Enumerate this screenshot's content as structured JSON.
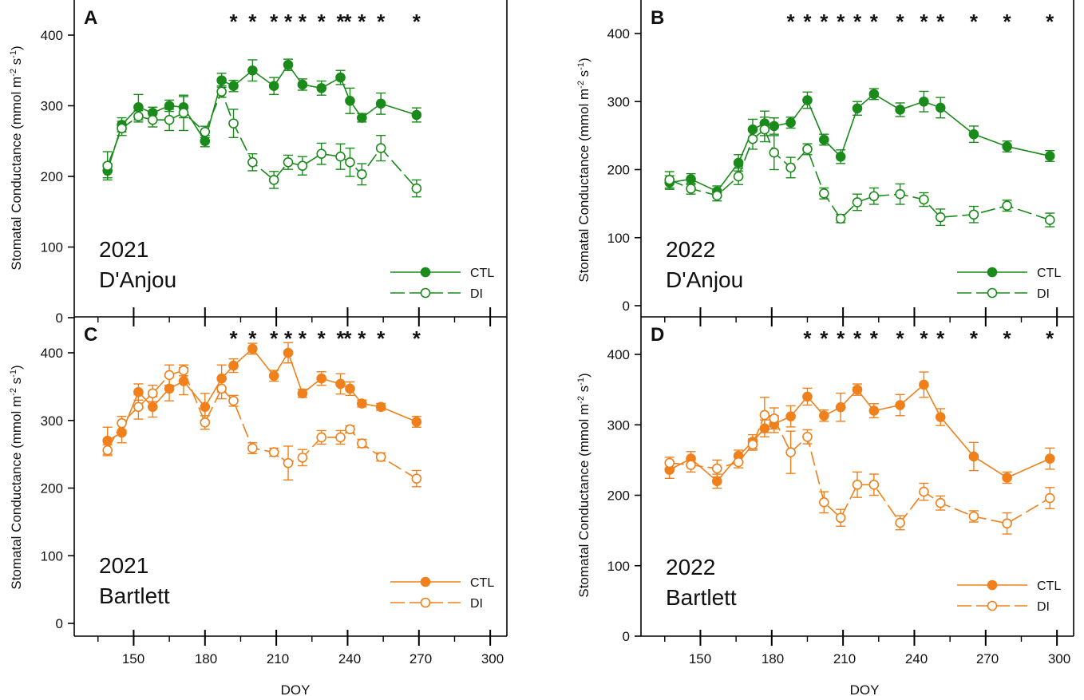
{
  "figure": {
    "x_axis_title": "DOY",
    "y_axis_title": "Stomatal Conductance (mmol m",
    "y_axis_sup1": "-2",
    "y_axis_mid": " s",
    "y_axis_sup2": "-1",
    "y_axis_end": ")",
    "x_ticks": [
      "150",
      "180",
      "210",
      "240",
      "270",
      "300"
    ]
  },
  "colors": {
    "green": "#1a8a1a",
    "orange": "#f0801c"
  },
  "chart_data": [
    {
      "type": "line",
      "panel": "A",
      "annotation": [
        "2021",
        "D'Anjou"
      ],
      "color": "green",
      "xlim": [
        125,
        307
      ],
      "ylim": [
        0,
        440
      ],
      "y_ticks": [
        0,
        100,
        200,
        300,
        400
      ],
      "x_ticks": [
        150,
        180,
        210,
        240,
        270,
        300
      ],
      "x_label": "DOY",
      "y_label": "Stomatal Conductance (mmol m-2 s-1)",
      "legend": [
        "CTL",
        "DI"
      ],
      "legend_position": "bottom-right",
      "significance": [
        {
          "x": 192,
          "label": "*"
        },
        {
          "x": 200,
          "label": "*"
        },
        {
          "x": 209,
          "label": "*"
        },
        {
          "x": 215,
          "label": "*"
        },
        {
          "x": 221,
          "label": "*"
        },
        {
          "x": 229,
          "label": "*"
        },
        {
          "x": 237,
          "label": "*"
        },
        {
          "x": 240,
          "label": "*"
        },
        {
          "x": 246,
          "label": "*"
        },
        {
          "x": 254,
          "label": "*"
        },
        {
          "x": 269,
          "label": "*"
        }
      ],
      "series": [
        {
          "name": "CTL",
          "marker": "filled",
          "x": [
            139,
            145,
            152,
            158,
            165,
            171,
            180,
            187,
            192,
            200,
            209,
            215,
            221,
            229,
            237,
            241,
            246,
            254,
            269
          ],
          "y": [
            208,
            273,
            298,
            290,
            300,
            298,
            250,
            336,
            328,
            350,
            328,
            358,
            330,
            325,
            340,
            307,
            283,
            303,
            287
          ],
          "err": [
            10,
            10,
            18,
            8,
            8,
            15,
            8,
            10,
            8,
            15,
            12,
            8,
            8,
            10,
            10,
            18,
            6,
            15,
            10
          ]
        },
        {
          "name": "DI",
          "marker": "open",
          "x": [
            139,
            145,
            152,
            158,
            165,
            171,
            180,
            187,
            192,
            200,
            209,
            215,
            221,
            229,
            237,
            241,
            246,
            254,
            269
          ],
          "y": [
            215,
            268,
            285,
            280,
            280,
            290,
            263,
            320,
            275,
            220,
            195,
            220,
            215,
            232,
            228,
            220,
            203,
            240,
            183
          ],
          "err": [
            20,
            10,
            8,
            10,
            15,
            25,
            8,
            8,
            20,
            12,
            12,
            10,
            13,
            15,
            18,
            20,
            15,
            18,
            12
          ]
        }
      ]
    },
    {
      "type": "line",
      "panel": "B",
      "annotation": [
        "2022",
        "D'Anjou"
      ],
      "color": "green",
      "xlim": [
        125,
        307
      ],
      "ylim": [
        0,
        440
      ],
      "y_ticks": [
        0,
        100,
        200,
        300,
        400
      ],
      "x_ticks": [
        150,
        180,
        210,
        240,
        270,
        300
      ],
      "x_label": "DOY",
      "y_label": "Stomatal Conductance (mmol m-2 s-1)",
      "legend": [
        "CTL",
        "DI"
      ],
      "legend_position": "bottom-right",
      "significance": [
        {
          "x": 188,
          "label": "*"
        },
        {
          "x": 195,
          "label": "*"
        },
        {
          "x": 202,
          "label": "*"
        },
        {
          "x": 209,
          "label": "*"
        },
        {
          "x": 216,
          "label": "*"
        },
        {
          "x": 223,
          "label": "*"
        },
        {
          "x": 234,
          "label": "*"
        },
        {
          "x": 244,
          "label": "*"
        },
        {
          "x": 251,
          "label": "*"
        },
        {
          "x": 265,
          "label": "*"
        },
        {
          "x": 279,
          "label": "*"
        },
        {
          "x": 297,
          "label": "*"
        }
      ],
      "series": [
        {
          "name": "CTL",
          "marker": "filled",
          "x": [
            137,
            146,
            157,
            166,
            172,
            177,
            181,
            188,
            195,
            202,
            209,
            216,
            223,
            234,
            244,
            251,
            265,
            279,
            297
          ],
          "y": [
            181,
            186,
            168,
            210,
            259,
            268,
            264,
            269,
            302,
            244,
            219,
            290,
            311,
            288,
            300,
            291,
            252,
            234,
            220
          ],
          "err": [
            10,
            8,
            8,
            12,
            15,
            18,
            12,
            8,
            12,
            8,
            10,
            10,
            8,
            10,
            15,
            15,
            12,
            8,
            8
          ]
        },
        {
          "name": "DI",
          "marker": "open",
          "x": [
            137,
            146,
            157,
            166,
            172,
            177,
            181,
            188,
            195,
            202,
            209,
            216,
            223,
            234,
            244,
            251,
            265,
            279,
            297
          ],
          "y": [
            185,
            172,
            162,
            190,
            245,
            259,
            225,
            203,
            230,
            165,
            128,
            152,
            161,
            164,
            156,
            130,
            134,
            147,
            126
          ],
          "err": [
            12,
            8,
            8,
            12,
            15,
            18,
            25,
            15,
            8,
            8,
            6,
            12,
            12,
            15,
            10,
            12,
            12,
            8,
            10
          ]
        }
      ]
    },
    {
      "type": "line",
      "panel": "C",
      "annotation": [
        "2021",
        "Bartlett"
      ],
      "color": "orange",
      "xlim": [
        125,
        307
      ],
      "ylim": [
        0,
        440
      ],
      "y_ticks": [
        0,
        100,
        200,
        300,
        400
      ],
      "x_ticks": [
        150,
        180,
        210,
        240,
        270,
        300
      ],
      "x_label": "DOY",
      "y_label": "Stomatal Conductance (mmol m-2 s-1)",
      "legend": [
        "CTL",
        "DI"
      ],
      "legend_position": "bottom-right",
      "significance": [
        {
          "x": 192,
          "label": "*"
        },
        {
          "x": 200,
          "label": "*"
        },
        {
          "x": 209,
          "label": "*"
        },
        {
          "x": 215,
          "label": "*"
        },
        {
          "x": 221,
          "label": "*"
        },
        {
          "x": 229,
          "label": "*"
        },
        {
          "x": 237,
          "label": "*"
        },
        {
          "x": 240,
          "label": "*"
        },
        {
          "x": 246,
          "label": "*"
        },
        {
          "x": 254,
          "label": "*"
        },
        {
          "x": 269,
          "label": "*"
        }
      ],
      "series": [
        {
          "name": "CTL",
          "marker": "filled",
          "x": [
            139,
            145,
            152,
            158,
            165,
            171,
            180,
            187,
            192,
            200,
            209,
            215,
            221,
            229,
            237,
            241,
            246,
            254,
            269
          ],
          "y": [
            270,
            282,
            342,
            320,
            347,
            358,
            320,
            362,
            381,
            406,
            366,
            400,
            340,
            362,
            354,
            347,
            325,
            320,
            298
          ],
          "err": [
            20,
            15,
            12,
            15,
            18,
            20,
            20,
            20,
            10,
            8,
            8,
            15,
            6,
            10,
            15,
            10,
            5,
            5,
            8
          ]
        },
        {
          "name": "DI",
          "marker": "open",
          "x": [
            139,
            145,
            152,
            158,
            165,
            171,
            180,
            187,
            192,
            200,
            209,
            215,
            221,
            229,
            237,
            241,
            246,
            254,
            269
          ],
          "y": [
            256,
            296,
            320,
            340,
            367,
            374,
            297,
            347,
            329,
            259,
            253,
            237,
            245,
            275,
            275,
            287,
            266,
            246,
            214
          ],
          "err": [
            8,
            10,
            18,
            12,
            15,
            8,
            10,
            15,
            8,
            8,
            6,
            25,
            12,
            10,
            10,
            5,
            6,
            6,
            12
          ]
        }
      ]
    },
    {
      "type": "line",
      "panel": "D",
      "annotation": [
        "2022",
        "Bartlett"
      ],
      "color": "orange",
      "xlim": [
        125,
        307
      ],
      "ylim": [
        0,
        440
      ],
      "y_ticks": [
        0,
        100,
        200,
        300,
        400
      ],
      "x_ticks": [
        150,
        180,
        210,
        240,
        270,
        300
      ],
      "x_label": "DOY",
      "y_label": "Stomatal Conductance (mmol m-2 s-1)",
      "legend": [
        "CTL",
        "DI"
      ],
      "legend_position": "bottom-right",
      "significance": [
        {
          "x": 195,
          "label": "*"
        },
        {
          "x": 202,
          "label": "*"
        },
        {
          "x": 209,
          "label": "*"
        },
        {
          "x": 216,
          "label": "*"
        },
        {
          "x": 223,
          "label": "*"
        },
        {
          "x": 234,
          "label": "*"
        },
        {
          "x": 244,
          "label": "*"
        },
        {
          "x": 251,
          "label": "*"
        },
        {
          "x": 265,
          "label": "*"
        },
        {
          "x": 279,
          "label": "*"
        },
        {
          "x": 297,
          "label": "*"
        }
      ],
      "series": [
        {
          "name": "CTL",
          "marker": "filled",
          "x": [
            137,
            146,
            157,
            166,
            172,
            177,
            181,
            188,
            195,
            202,
            209,
            216,
            223,
            234,
            244,
            251,
            265,
            279,
            297
          ],
          "y": [
            236,
            252,
            220,
            256,
            276,
            295,
            301,
            312,
            340,
            313,
            325,
            350,
            320,
            328,
            357,
            311,
            255,
            225,
            252
          ],
          "err": [
            12,
            10,
            10,
            8,
            10,
            12,
            12,
            15,
            12,
            8,
            20,
            8,
            10,
            15,
            18,
            12,
            20,
            8,
            15
          ]
        },
        {
          "name": "DI",
          "marker": "open",
          "x": [
            137,
            146,
            157,
            166,
            172,
            177,
            181,
            188,
            195,
            202,
            209,
            216,
            223,
            234,
            244,
            251,
            265,
            279,
            297
          ],
          "y": [
            246,
            243,
            238,
            247,
            272,
            314,
            309,
            261,
            283,
            190,
            168,
            215,
            215,
            161,
            205,
            189,
            170,
            160,
            196
          ],
          "err": [
            8,
            10,
            12,
            8,
            8,
            25,
            15,
            30,
            10,
            15,
            12,
            18,
            15,
            10,
            12,
            10,
            8,
            15,
            15
          ]
        }
      ]
    }
  ]
}
